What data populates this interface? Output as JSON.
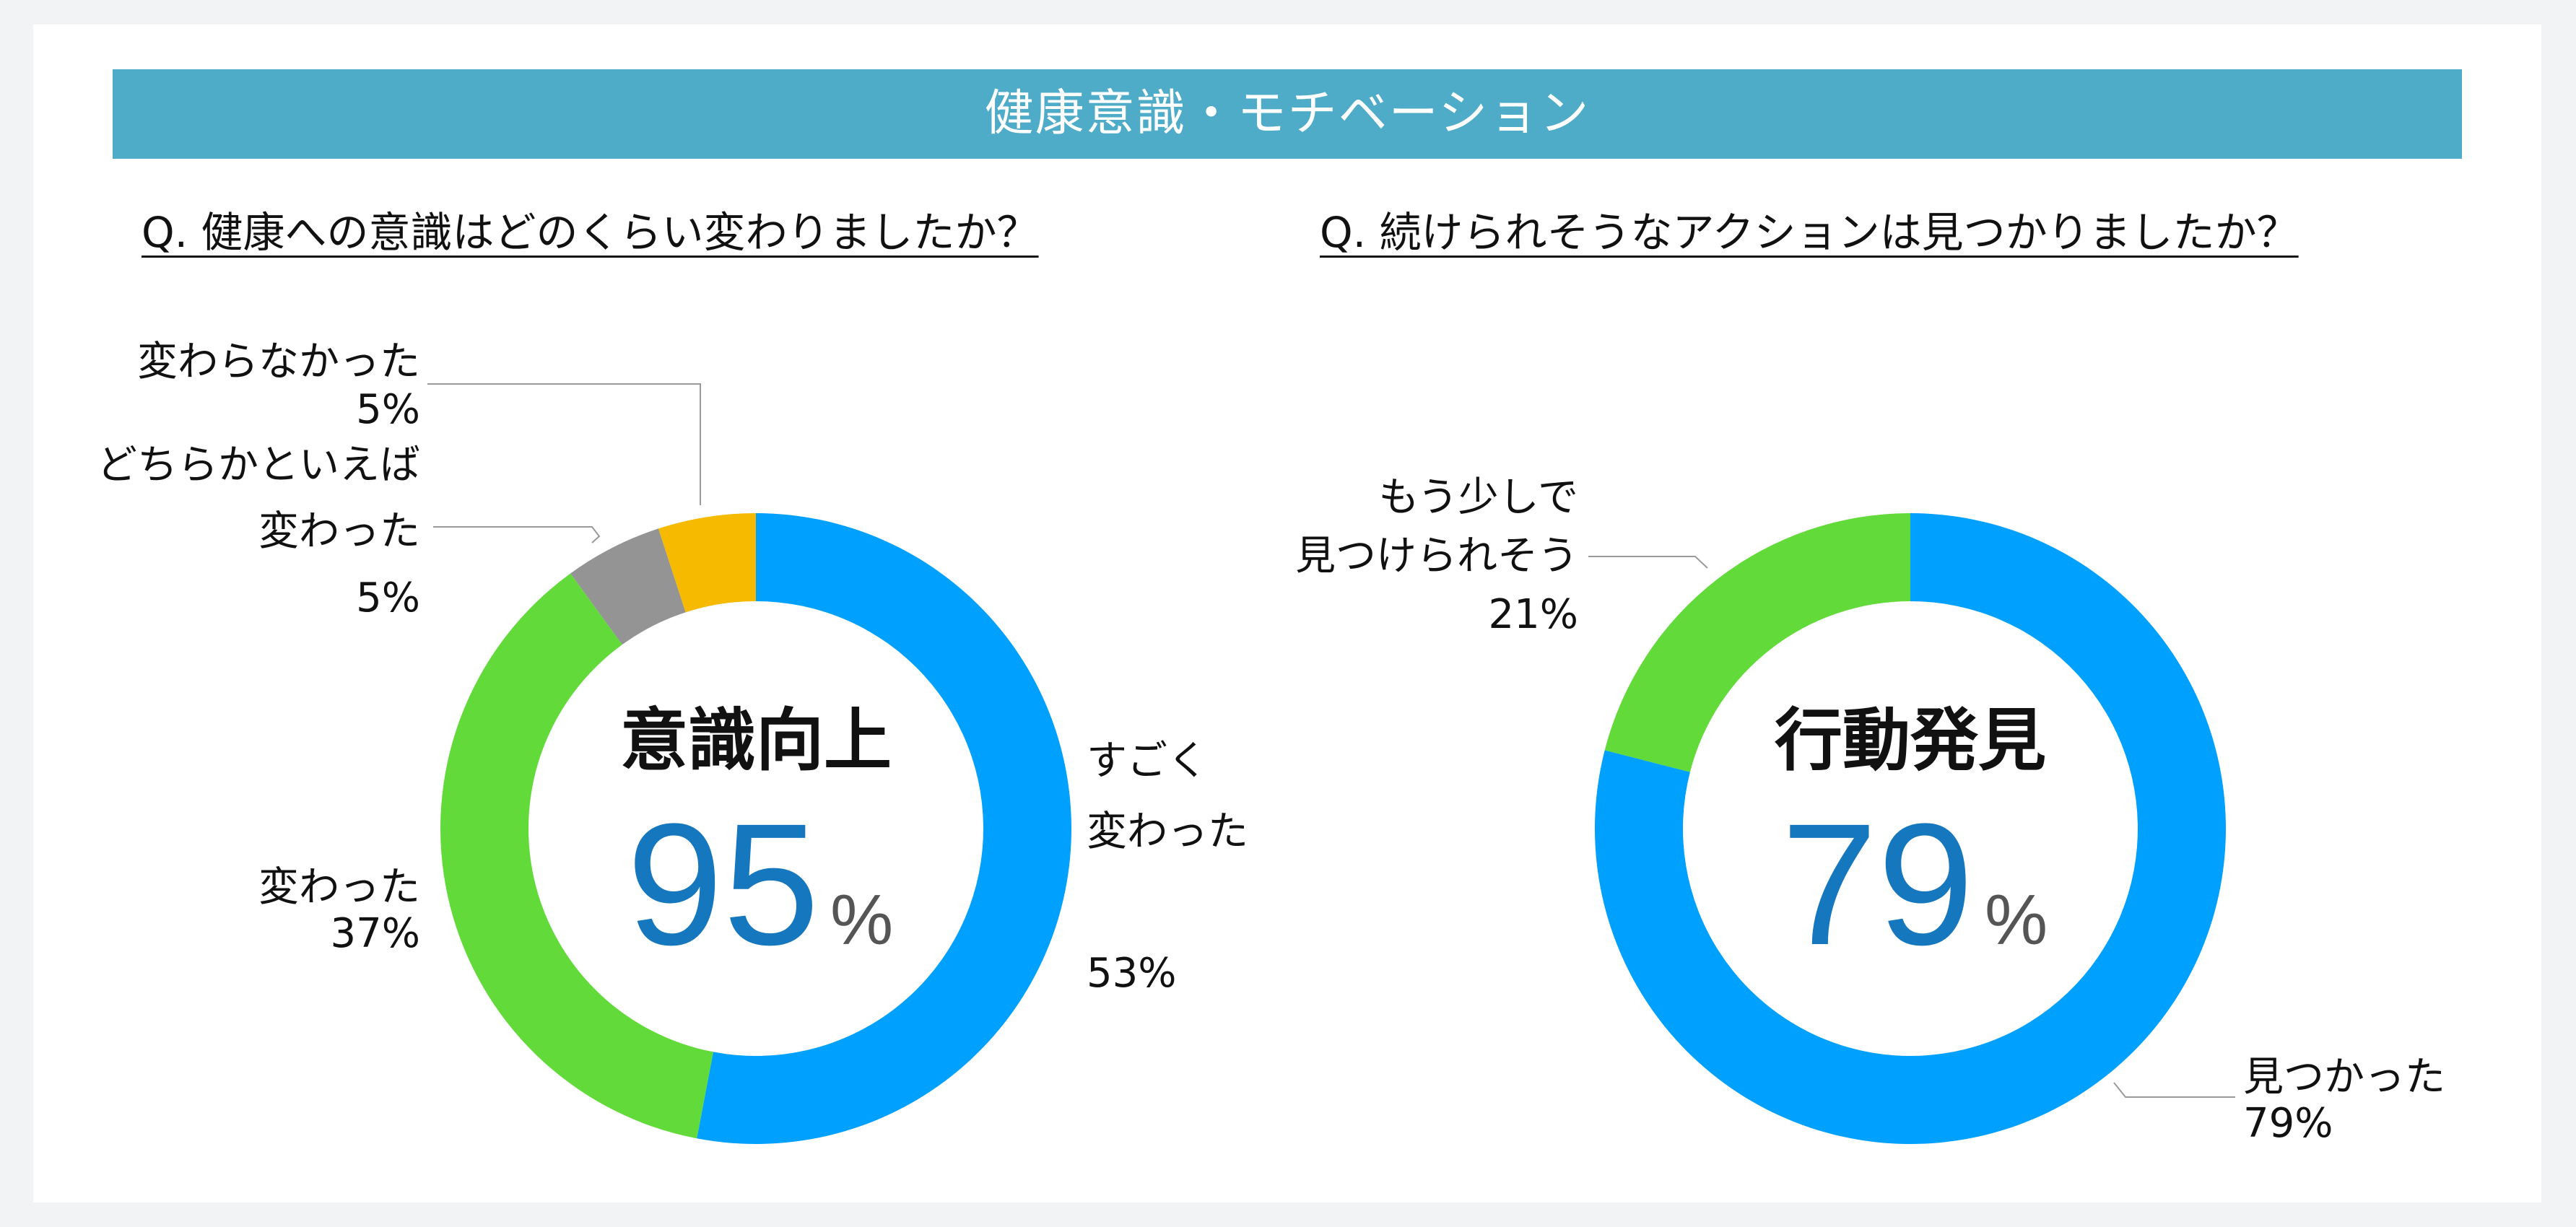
{
  "header": {
    "title": "健康意識・モチベーション"
  },
  "colors": {
    "banner": "#4eacc8",
    "blue": "#00a1fe",
    "green": "#62da3a",
    "gray": "#949494",
    "yellow": "#f6ba00",
    "big_number": "#1577be",
    "percent_sign": "#555555",
    "leader_line": "#9a9a9a"
  },
  "questions": {
    "q1": "Q. 健康への意識はどのくらい変わりましたか？",
    "q2": "Q. 続けられそうなアクションは見つかりましたか？"
  },
  "chart_data": [
    {
      "type": "pie",
      "subtype": "donut",
      "title": "Q. 健康への意識はどのくらい変わりましたか？",
      "slices": [
        {
          "label": "すごく変わった",
          "value": 53,
          "color": "#00a1fe"
        },
        {
          "label": "変わった",
          "value": 37,
          "color": "#62da3a"
        },
        {
          "label": "どちらかといえば変わった",
          "value": 5,
          "color": "#949494"
        },
        {
          "label": "変わらなかった",
          "value": 5,
          "color": "#f6ba00"
        }
      ],
      "data_labels": [
        {
          "lines": [
            "すごく",
            "変わった",
            "",
            "53%"
          ]
        },
        {
          "lines": [
            "変わった",
            "37%"
          ]
        },
        {
          "lines": [
            "どちらかといえば",
            "変わった",
            "5%"
          ]
        },
        {
          "lines": [
            "変わらなかった",
            "5%"
          ]
        }
      ],
      "center_label": "意識向上",
      "center_value": "95",
      "center_unit": "%"
    },
    {
      "type": "pie",
      "subtype": "donut",
      "title": "Q. 続けられそうなアクションは見つかりましたか？",
      "slices": [
        {
          "label": "見つかった",
          "value": 79,
          "color": "#00a1fe"
        },
        {
          "label": "もう少しで見つけられそう",
          "value": 21,
          "color": "#62da3a"
        }
      ],
      "data_labels": [
        {
          "lines": [
            "見つかった",
            "79%"
          ]
        },
        {
          "lines": [
            "もう少しで",
            "見つけられそう",
            "21%"
          ]
        }
      ],
      "center_label": "行動発見",
      "center_value": "79",
      "center_unit": "%"
    }
  ]
}
